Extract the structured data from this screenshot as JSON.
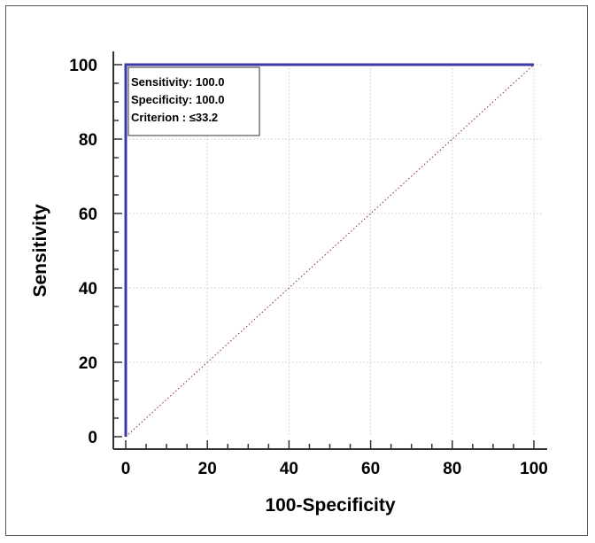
{
  "chart_data": {
    "type": "line",
    "title": "",
    "xlabel": "100-Specificity",
    "ylabel": "Sensitivity",
    "xlim": [
      0,
      100
    ],
    "ylim": [
      0,
      100
    ],
    "x_ticks": [
      0,
      20,
      40,
      60,
      80,
      100
    ],
    "y_ticks": [
      0,
      20,
      40,
      60,
      80,
      100
    ],
    "grid": true,
    "series": [
      {
        "style": "solid",
        "color": "#3b3ba8",
        "points": [
          [
            0,
            0
          ],
          [
            0,
            100
          ],
          [
            100,
            100
          ]
        ]
      },
      {
        "style": "dotted",
        "color": "#8b2a2a",
        "points": [
          [
            0,
            0
          ],
          [
            100,
            100
          ]
        ]
      }
    ],
    "annotation": {
      "lines": [
        "Sensitivity: 100.0",
        "Specificity: 100.0",
        "Criterion : ≤33.2"
      ]
    }
  }
}
